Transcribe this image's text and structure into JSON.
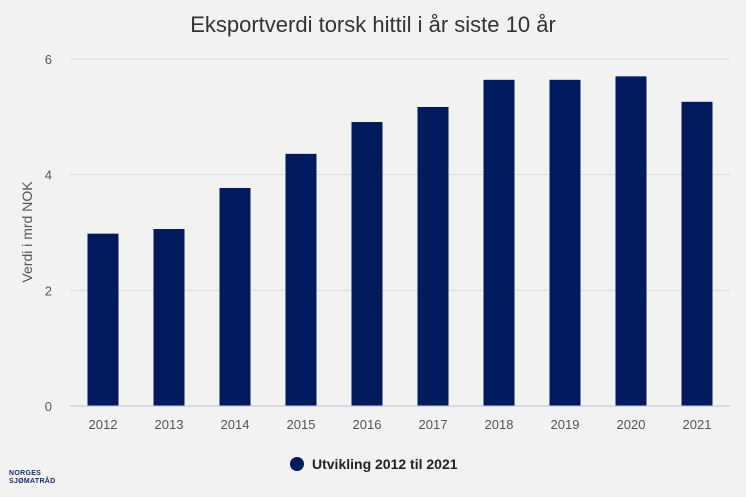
{
  "chart_data": {
    "type": "bar",
    "title": "Eksportverdi torsk hittil i år siste 10 år",
    "xlabel": "",
    "ylabel": "Verdi i mrd NOK",
    "categories": [
      "2012",
      "2013",
      "2014",
      "2015",
      "2016",
      "2017",
      "2018",
      "2019",
      "2020",
      "2021"
    ],
    "series": [
      {
        "name": "Utvikling 2012 til 2021",
        "values": [
          2.98,
          3.06,
          3.77,
          4.36,
          4.91,
          5.17,
          5.64,
          5.64,
          5.7,
          5.26
        ],
        "color": "#001a5e"
      }
    ],
    "ylim": [
      0,
      6
    ],
    "yticks": [
      0,
      2,
      4,
      6
    ],
    "grid": true,
    "legend": "bottom"
  },
  "logo": {
    "line1": "NORGES",
    "line2": "SJØMATRÅD"
  }
}
